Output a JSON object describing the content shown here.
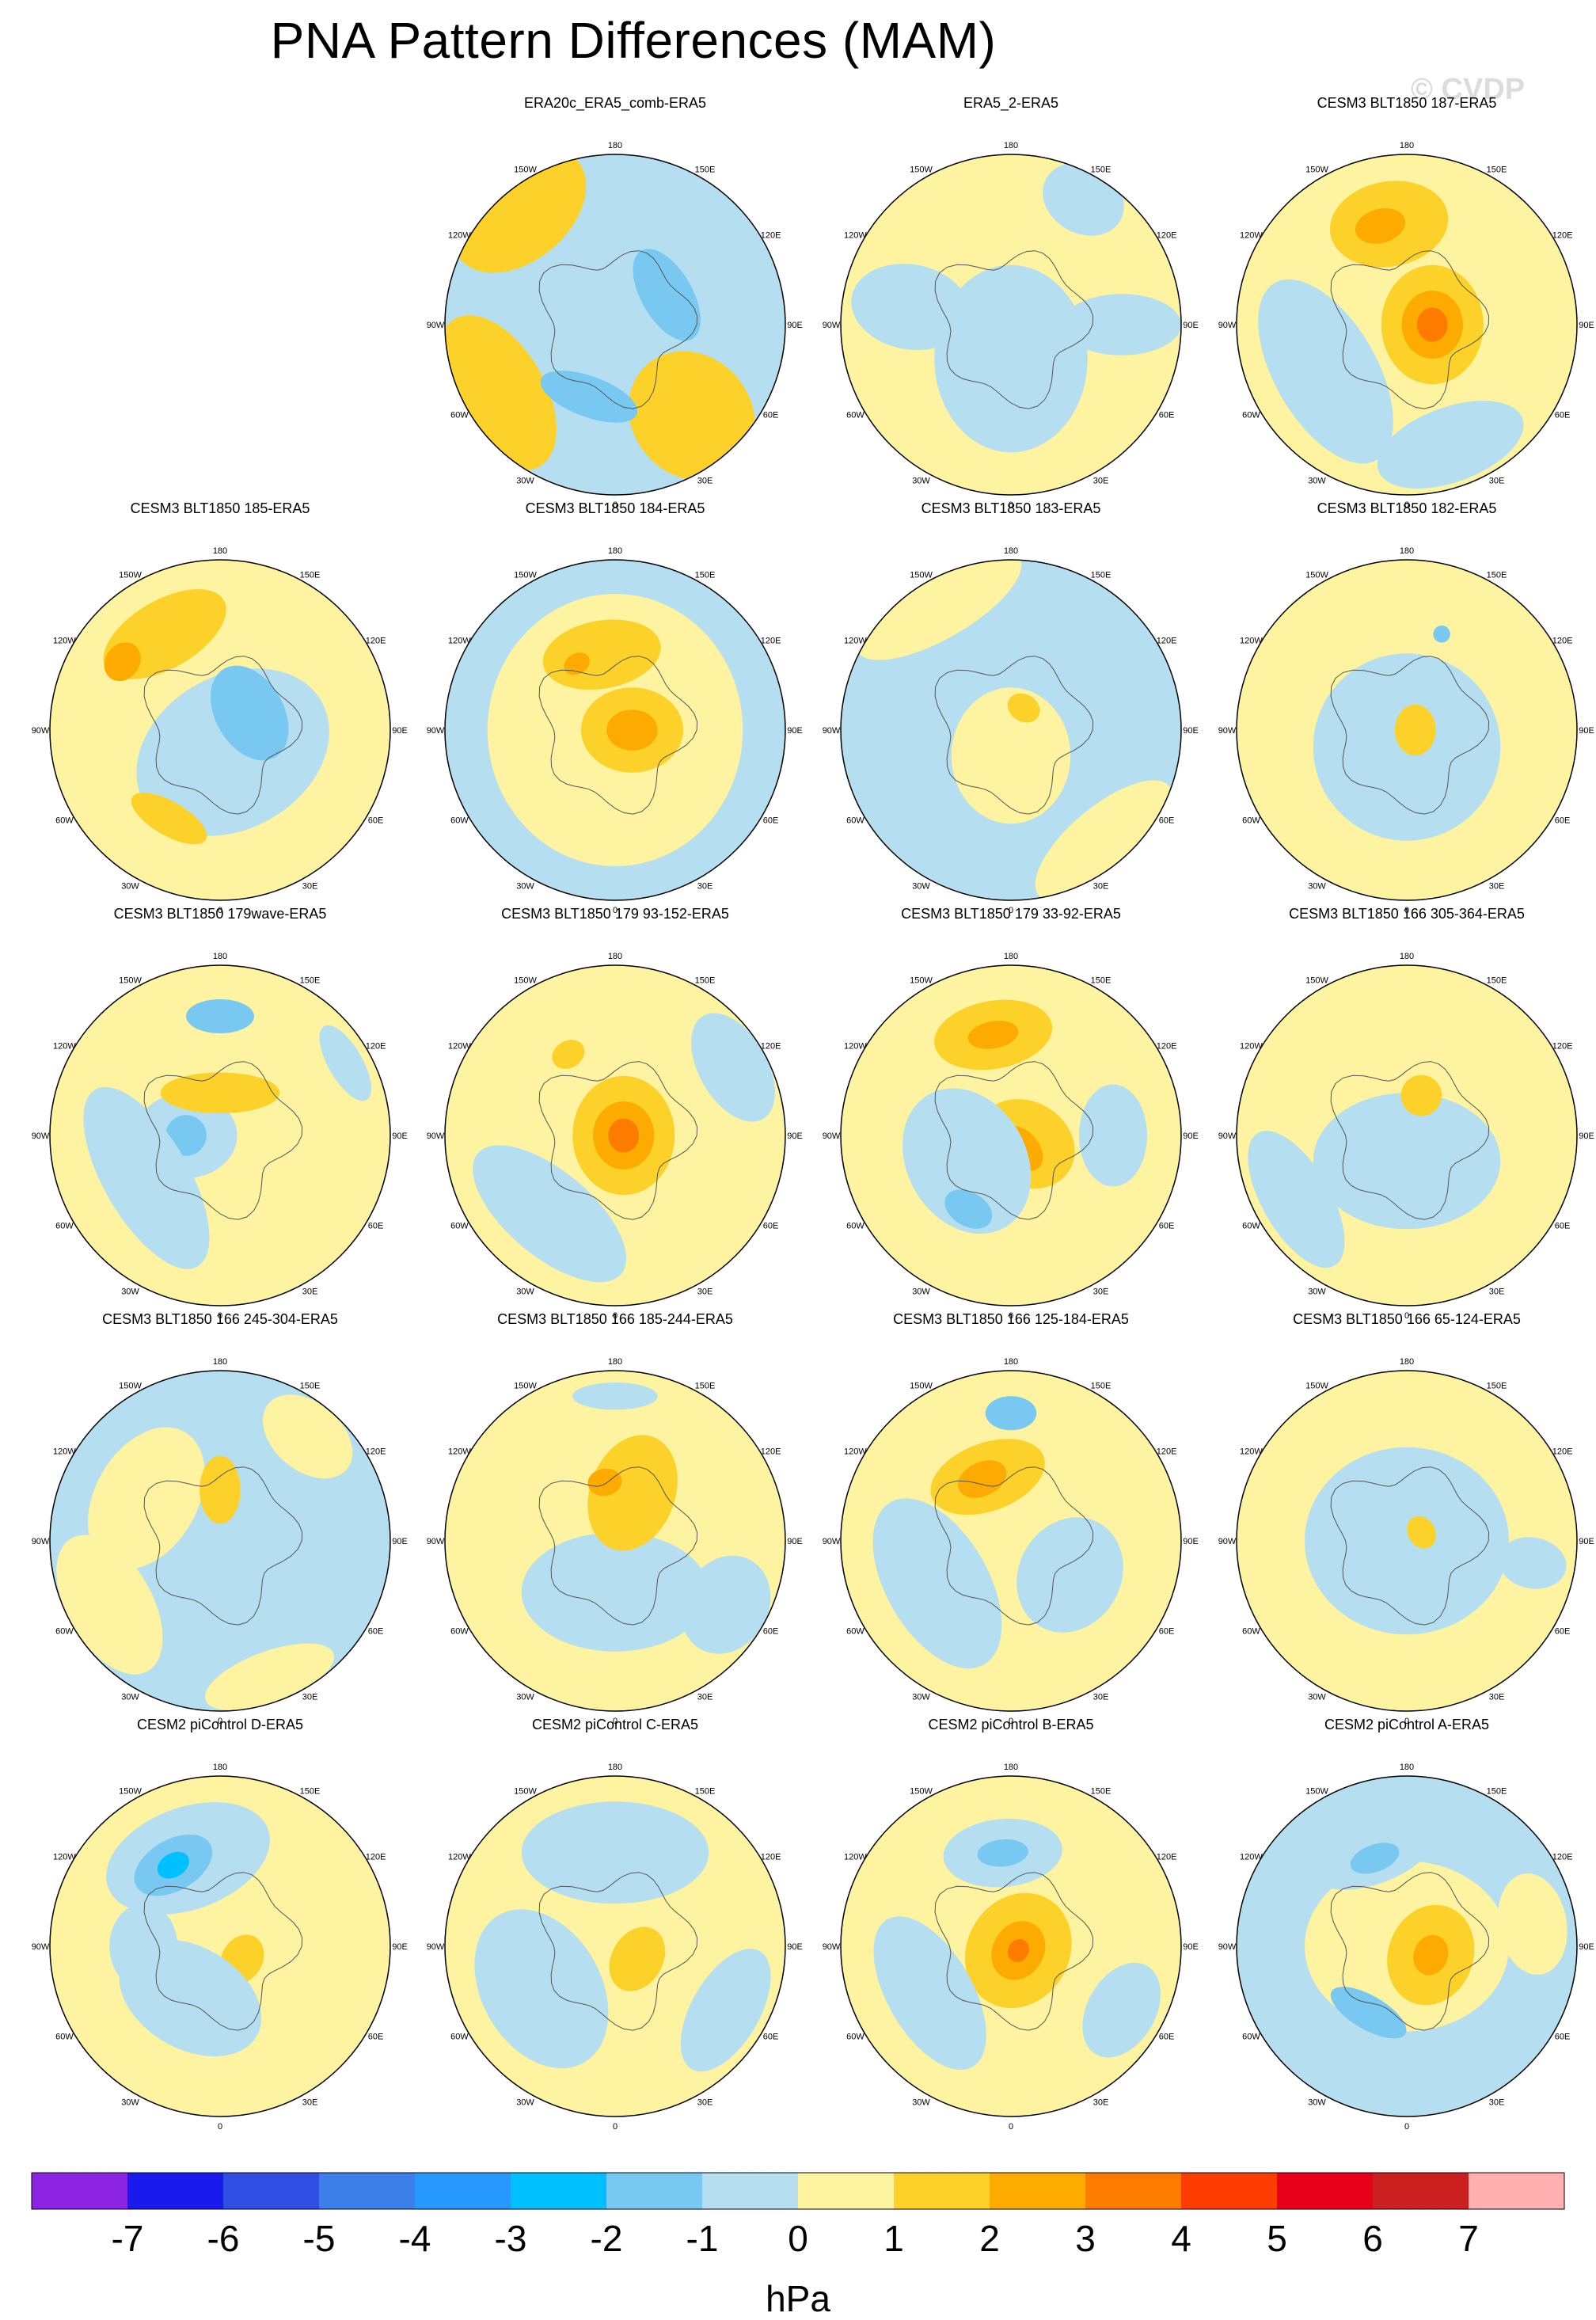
{
  "title": "PNA Pattern Differences (MAM)",
  "watermark": "© CVDP",
  "lon_labels": [
    "180",
    "150E",
    "120E",
    "90E",
    "60E",
    "30E",
    "0",
    "30W",
    "60W",
    "90W",
    "120W",
    "150W"
  ],
  "panels": [
    {
      "title": "ERA20c_ERA5_comb-ERA5",
      "base": "#b5dff0",
      "blobs": [
        {
          "lon": -140,
          "r": 0.88,
          "rx": 0.45,
          "ry": 0.3,
          "lvl": 1
        },
        {
          "lon": 40,
          "r": 0.7,
          "rx": 0.35,
          "ry": 0.4,
          "lvl": 1
        },
        {
          "lon": -60,
          "r": 0.8,
          "rx": 0.5,
          "ry": 0.28,
          "lvl": 1
        },
        {
          "lon": 120,
          "r": 0.35,
          "rx": 0.3,
          "ry": 0.15,
          "lvl": -1.5
        },
        {
          "lon": -20,
          "r": 0.45,
          "rx": 0.3,
          "ry": 0.12,
          "lvl": -1.5
        }
      ]
    },
    {
      "title": "ERA5_2-ERA5",
      "base": "#fdf3a0",
      "blobs": [
        {
          "lon": 0,
          "r": 0.2,
          "rx": 0.45,
          "ry": 0.55,
          "lvl": -0.5
        },
        {
          "lon": -100,
          "r": 0.6,
          "rx": 0.25,
          "ry": 0.35,
          "lvl": -0.5
        },
        {
          "lon": 90,
          "r": 0.65,
          "rx": 0.18,
          "ry": 0.35,
          "lvl": -0.5
        },
        {
          "lon": 150,
          "r": 0.85,
          "rx": 0.25,
          "ry": 0.2,
          "lvl": -0.5
        }
      ]
    },
    {
      "title": "CESM3 BLT1850 187-ERA5",
      "base": "#fdf3a0",
      "blobs": [
        {
          "lon": -170,
          "r": 0.6,
          "rx": 0.35,
          "ry": 0.25,
          "lvl": 1.5
        },
        {
          "lon": -165,
          "r": 0.6,
          "rx": 0.15,
          "ry": 0.1,
          "lvl": 2.5
        },
        {
          "lon": 90,
          "r": 0.15,
          "rx": 0.35,
          "ry": 0.3,
          "lvl": 1.5
        },
        {
          "lon": 90,
          "r": 0.15,
          "rx": 0.2,
          "ry": 0.18,
          "lvl": 2.5
        },
        {
          "lon": 90,
          "r": 0.15,
          "rx": 0.1,
          "ry": 0.09,
          "lvl": 3.5
        },
        {
          "lon": -60,
          "r": 0.55,
          "rx": 0.6,
          "ry": 0.3,
          "lvl": -0.5
        },
        {
          "lon": 20,
          "r": 0.75,
          "rx": 0.45,
          "ry": 0.22,
          "lvl": -0.5
        }
      ]
    },
    {
      "title": "CESM3 BLT1850 185-ERA5",
      "base": "#fdf3a0",
      "blobs": [
        {
          "lon": -150,
          "r": 0.65,
          "rx": 0.4,
          "ry": 0.2,
          "lvl": 1.5
        },
        {
          "lon": -125,
          "r": 0.7,
          "rx": 0.12,
          "ry": 0.1,
          "lvl": 2.5
        },
        {
          "lon": 30,
          "r": 0.15,
          "rx": 0.6,
          "ry": 0.45,
          "lvl": -0.5
        },
        {
          "lon": 120,
          "r": 0.2,
          "rx": 0.3,
          "ry": 0.2,
          "lvl": -1.5
        },
        {
          "lon": -30,
          "r": 0.6,
          "rx": 0.25,
          "ry": 0.1,
          "lvl": 1.5
        }
      ]
    },
    {
      "title": "CESM3 BLT1850 184-ERA5",
      "base": "#b5dff0",
      "blobs": [
        {
          "lon": 0,
          "r": 0.0,
          "rx": 0.75,
          "ry": 0.8,
          "lvl": 0.5
        },
        {
          "lon": -170,
          "r": 0.45,
          "rx": 0.35,
          "ry": 0.2,
          "lvl": 1.5
        },
        {
          "lon": 90,
          "r": 0.1,
          "rx": 0.25,
          "ry": 0.3,
          "lvl": 1.5
        },
        {
          "lon": 90,
          "r": 0.1,
          "rx": 0.12,
          "ry": 0.15,
          "lvl": 2.5
        },
        {
          "lon": -150,
          "r": 0.45,
          "rx": 0.08,
          "ry": 0.06,
          "lvl": 2.5
        }
      ]
    },
    {
      "title": "CESM3 BLT1850 183-ERA5",
      "base": "#b5dff0",
      "blobs": [
        {
          "lon": 0,
          "r": 0.15,
          "rx": 0.35,
          "ry": 0.4,
          "lvl": 0.5
        },
        {
          "lon": -150,
          "r": 0.85,
          "rx": 0.55,
          "ry": 0.2,
          "lvl": 0.5
        },
        {
          "lon": 40,
          "r": 0.85,
          "rx": 0.5,
          "ry": 0.2,
          "lvl": 0.5
        },
        {
          "lon": 150,
          "r": 0.15,
          "rx": 0.1,
          "ry": 0.08,
          "lvl": 1.5
        }
      ]
    },
    {
      "title": "CESM3 BLT1850 182-ERA5",
      "base": "#fdf3a0",
      "blobs": [
        {
          "lon": 0,
          "r": 0.1,
          "rx": 0.55,
          "ry": 0.55,
          "lvl": -0.5
        },
        {
          "lon": 90,
          "r": 0.05,
          "rx": 0.15,
          "ry": 0.12,
          "lvl": 1.5
        },
        {
          "lon": -120,
          "r": 0.7,
          "rx": 0.3,
          "ry": 0.2,
          "lvl": 0.5
        },
        {
          "lon": 160,
          "r": 0.6,
          "rx": 0.05,
          "ry": 0.05,
          "lvl": -1.5
        }
      ]
    },
    {
      "title": "CESM3 BLT1850 179wave-ERA5",
      "base": "#fdf3a0",
      "blobs": [
        {
          "lon": 180,
          "r": 0.7,
          "rx": 0.2,
          "ry": 0.1,
          "lvl": -1.5
        },
        {
          "lon": -90,
          "r": 0.2,
          "rx": 0.25,
          "ry": 0.3,
          "lvl": -0.5
        },
        {
          "lon": -90,
          "r": 0.2,
          "rx": 0.12,
          "ry": 0.12,
          "lvl": -1.5
        },
        {
          "lon": -60,
          "r": 0.5,
          "rx": 0.3,
          "ry": 0.15,
          "lvl": -1.5
        },
        {
          "lon": -60,
          "r": 0.5,
          "rx": 0.6,
          "ry": 0.25,
          "lvl": -0.5
        },
        {
          "lon": -180,
          "r": 0.25,
          "rx": 0.35,
          "ry": 0.12,
          "lvl": 1.5
        },
        {
          "lon": 120,
          "r": 0.85,
          "rx": 0.25,
          "ry": 0.1,
          "lvl": -0.5
        }
      ]
    },
    {
      "title": "CESM3 BLT1850 179 93-152-ERA5",
      "base": "#fdf3a0",
      "blobs": [
        {
          "lon": 90,
          "r": 0.05,
          "rx": 0.35,
          "ry": 0.3,
          "lvl": 1.5
        },
        {
          "lon": 90,
          "r": 0.05,
          "rx": 0.2,
          "ry": 0.18,
          "lvl": 2.5
        },
        {
          "lon": 90,
          "r": 0.05,
          "rx": 0.1,
          "ry": 0.09,
          "lvl": 3.5
        },
        {
          "lon": -150,
          "r": 0.55,
          "rx": 0.1,
          "ry": 0.08,
          "lvl": 1.5
        },
        {
          "lon": -40,
          "r": 0.6,
          "rx": 0.55,
          "ry": 0.25,
          "lvl": -0.5
        },
        {
          "lon": 120,
          "r": 0.8,
          "rx": 0.35,
          "ry": 0.2,
          "lvl": -0.5
        }
      ]
    },
    {
      "title": "CESM3 BLT1850 179 33-92-ERA5",
      "base": "#fdf3a0",
      "blobs": [
        {
          "lon": -170,
          "r": 0.6,
          "rx": 0.35,
          "ry": 0.2,
          "lvl": 1.5
        },
        {
          "lon": -170,
          "r": 0.6,
          "rx": 0.15,
          "ry": 0.08,
          "lvl": 2.5
        },
        {
          "lon": 60,
          "r": 0.1,
          "rx": 0.25,
          "ry": 0.3,
          "lvl": 1.5
        },
        {
          "lon": 40,
          "r": 0.1,
          "rx": 0.1,
          "ry": 0.15,
          "lvl": 2.5
        },
        {
          "lon": -60,
          "r": 0.3,
          "rx": 0.45,
          "ry": 0.35,
          "lvl": -0.5
        },
        {
          "lon": -30,
          "r": 0.5,
          "rx": 0.15,
          "ry": 0.1,
          "lvl": -1.5
        },
        {
          "lon": 90,
          "r": 0.6,
          "rx": 0.3,
          "ry": 0.2,
          "lvl": -0.5
        }
      ]
    },
    {
      "title": "CESM3 BLT1850 166 305-364-ERA5",
      "base": "#fdf3a0",
      "blobs": [
        {
          "lon": 0,
          "r": 0.15,
          "rx": 0.55,
          "ry": 0.4,
          "lvl": -0.5
        },
        {
          "lon": 160,
          "r": 0.25,
          "rx": 0.12,
          "ry": 0.12,
          "lvl": 1.5
        },
        {
          "lon": -60,
          "r": 0.75,
          "rx": 0.45,
          "ry": 0.2,
          "lvl": -0.5
        }
      ]
    },
    {
      "title": "CESM3 BLT1850 166 245-304-ERA5",
      "base": "#b5dff0",
      "blobs": [
        {
          "lon": -120,
          "r": 0.5,
          "rx": 0.45,
          "ry": 0.3,
          "lvl": 0.5
        },
        {
          "lon": -180,
          "r": 0.3,
          "rx": 0.12,
          "ry": 0.2,
          "lvl": 1.5
        },
        {
          "lon": -60,
          "r": 0.75,
          "rx": 0.45,
          "ry": 0.25,
          "lvl": 0.5
        },
        {
          "lon": 20,
          "r": 0.85,
          "rx": 0.4,
          "ry": 0.15,
          "lvl": 0.5
        },
        {
          "lon": 140,
          "r": 0.8,
          "rx": 0.3,
          "ry": 0.2,
          "lvl": 0.5
        }
      ]
    },
    {
      "title": "CESM3 BLT1850 166 185-244-ERA5",
      "base": "#fdf3a0",
      "blobs": [
        {
          "lon": 0,
          "r": 0.3,
          "rx": 0.55,
          "ry": 0.35,
          "lvl": -0.5
        },
        {
          "lon": 180,
          "r": 0.85,
          "rx": 0.25,
          "ry": 0.08,
          "lvl": -0.5
        },
        {
          "lon": 160,
          "r": 0.3,
          "rx": 0.25,
          "ry": 0.35,
          "lvl": 1.5
        },
        {
          "lon": -170,
          "r": 0.35,
          "rx": 0.1,
          "ry": 0.08,
          "lvl": 2.5
        },
        {
          "lon": 60,
          "r": 0.75,
          "rx": 0.3,
          "ry": 0.25,
          "lvl": -0.5
        }
      ]
    },
    {
      "title": "CESM3 BLT1850 166 125-184-ERA5",
      "base": "#fdf3a0",
      "blobs": [
        {
          "lon": 180,
          "r": 0.75,
          "rx": 0.15,
          "ry": 0.1,
          "lvl": -1.5
        },
        {
          "lon": -160,
          "r": 0.4,
          "rx": 0.35,
          "ry": 0.2,
          "lvl": 1.5
        },
        {
          "lon": -155,
          "r": 0.4,
          "rx": 0.15,
          "ry": 0.1,
          "lvl": 2.5
        },
        {
          "lon": -60,
          "r": 0.5,
          "rx": 0.55,
          "ry": 0.3,
          "lvl": -0.5
        },
        {
          "lon": 60,
          "r": 0.4,
          "rx": 0.35,
          "ry": 0.3,
          "lvl": -0.5
        }
      ]
    },
    {
      "title": "CESM3 BLT1850 166 65-124-ERA5",
      "base": "#fdf3a0",
      "blobs": [
        {
          "lon": 0,
          "r": 0.0,
          "rx": 0.6,
          "ry": 0.55,
          "lvl": -0.5
        },
        {
          "lon": 120,
          "r": 0.1,
          "rx": 0.1,
          "ry": 0.08,
          "lvl": 1.5
        },
        {
          "lon": 80,
          "r": 0.75,
          "rx": 0.15,
          "ry": 0.2,
          "lvl": -0.5
        }
      ]
    },
    {
      "title": "CESM2 piControl D-ERA5",
      "base": "#fdf3a0",
      "blobs": [
        {
          "lon": -160,
          "r": 0.55,
          "rx": 0.5,
          "ry": 0.3,
          "lvl": -0.5
        },
        {
          "lon": -150,
          "r": 0.55,
          "rx": 0.25,
          "ry": 0.15,
          "lvl": -1.5
        },
        {
          "lon": -150,
          "r": 0.55,
          "rx": 0.1,
          "ry": 0.07,
          "lvl": -2.5
        },
        {
          "lon": 60,
          "r": 0.15,
          "rx": 0.15,
          "ry": 0.12,
          "lvl": 1.5
        },
        {
          "lon": -30,
          "r": 0.35,
          "rx": 0.45,
          "ry": 0.3,
          "lvl": -0.5
        },
        {
          "lon": -90,
          "r": 0.45,
          "rx": 0.25,
          "ry": 0.2,
          "lvl": -0.5
        }
      ]
    },
    {
      "title": "CESM2 piControl C-ERA5",
      "base": "#fdf3a0",
      "blobs": [
        {
          "lon": -175,
          "r": 0.55,
          "rx": 0.25,
          "ry": 0.15,
          "lvl": -1.5
        },
        {
          "lon": -180,
          "r": 0.55,
          "rx": 0.55,
          "ry": 0.3,
          "lvl": -0.5
        },
        {
          "lon": -60,
          "r": 0.5,
          "rx": 0.5,
          "ry": 0.35,
          "lvl": -0.5
        },
        {
          "lon": 60,
          "r": 0.15,
          "rx": 0.2,
          "ry": 0.15,
          "lvl": 1.5
        },
        {
          "lon": 60,
          "r": 0.75,
          "rx": 0.4,
          "ry": 0.2,
          "lvl": -0.5
        }
      ]
    },
    {
      "title": "CESM2 piControl B-ERA5",
      "base": "#fdf3a0",
      "blobs": [
        {
          "lon": -175,
          "r": 0.55,
          "rx": 0.35,
          "ry": 0.2,
          "lvl": -0.5
        },
        {
          "lon": -175,
          "r": 0.55,
          "rx": 0.15,
          "ry": 0.08,
          "lvl": -1.5
        },
        {
          "lon": 60,
          "r": 0.05,
          "rx": 0.35,
          "ry": 0.3,
          "lvl": 1.5
        },
        {
          "lon": 60,
          "r": 0.05,
          "rx": 0.18,
          "ry": 0.15,
          "lvl": 2.5
        },
        {
          "lon": 60,
          "r": 0.05,
          "rx": 0.07,
          "ry": 0.06,
          "lvl": 3.5
        },
        {
          "lon": -60,
          "r": 0.55,
          "rx": 0.5,
          "ry": 0.25,
          "lvl": -0.5
        },
        {
          "lon": 60,
          "r": 0.75,
          "rx": 0.3,
          "ry": 0.2,
          "lvl": -0.5
        }
      ]
    },
    {
      "title": "CESM2 piControl A-ERA5",
      "base": "#b5dff0",
      "blobs": [
        {
          "lon": 0,
          "r": 0.0,
          "rx": 0.6,
          "ry": 0.5,
          "lvl": 0.5
        },
        {
          "lon": -160,
          "r": 0.55,
          "rx": 0.35,
          "ry": 0.15,
          "lvl": -0.5
        },
        {
          "lon": -160,
          "r": 0.55,
          "rx": 0.15,
          "ry": 0.08,
          "lvl": -1.5
        },
        {
          "lon": 70,
          "r": 0.15,
          "rx": 0.3,
          "ry": 0.25,
          "lvl": 1.5
        },
        {
          "lon": 70,
          "r": 0.15,
          "rx": 0.12,
          "ry": 0.1,
          "lvl": 2.5
        },
        {
          "lon": -30,
          "r": 0.45,
          "rx": 0.25,
          "ry": 0.1,
          "lvl": -1.5
        },
        {
          "lon": 100,
          "r": 0.75,
          "rx": 0.3,
          "ry": 0.2,
          "lvl": 0.5
        }
      ]
    }
  ],
  "colorbar": {
    "colors": [
      "#8e24e3",
      "#1a1aee",
      "#2f4fe4",
      "#3c7fe8",
      "#2698fe",
      "#00c0ff",
      "#78c8f2",
      "#b5dff0",
      "#fdf3a0",
      "#fcd22a",
      "#fdab00",
      "#fd7c00",
      "#fd3c00",
      "#e8001a",
      "#cc2020",
      "#ffb0b0"
    ],
    "labels": [
      "-7",
      "-6",
      "-5",
      "-4",
      "-3",
      "-2",
      "-1",
      "0",
      "1",
      "2",
      "3",
      "4",
      "5",
      "6",
      "7"
    ],
    "units": "hPa"
  }
}
